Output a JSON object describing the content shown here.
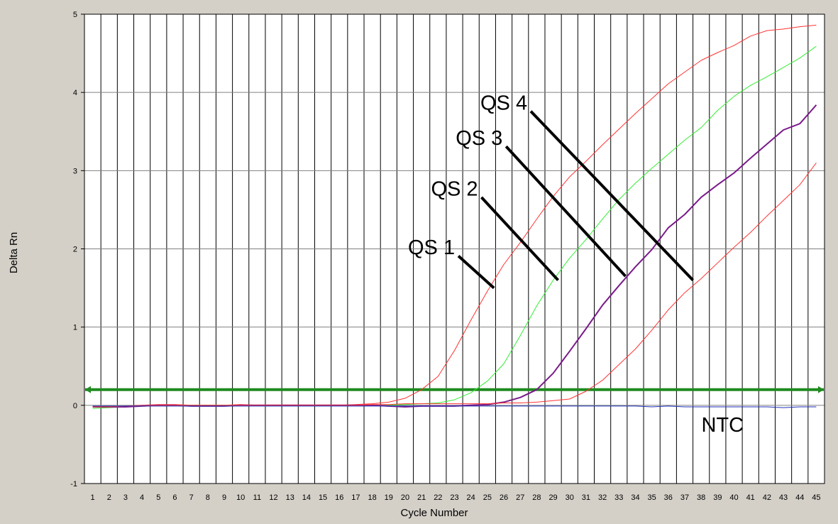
{
  "chart_data": {
    "type": "line",
    "title": "",
    "xlabel": "Cycle Number",
    "ylabel": "Delta Rn",
    "xlim": [
      0.5,
      45.5
    ],
    "ylim": [
      -1,
      5
    ],
    "x_ticks": [
      1,
      2,
      3,
      4,
      5,
      6,
      7,
      8,
      9,
      10,
      11,
      12,
      13,
      14,
      15,
      16,
      17,
      18,
      19,
      20,
      21,
      22,
      23,
      24,
      25,
      26,
      27,
      28,
      29,
      30,
      31,
      32,
      33,
      34,
      35,
      36,
      37,
      38,
      39,
      40,
      41,
      42,
      43,
      44,
      45
    ],
    "y_ticks": [
      -1,
      0,
      1,
      2,
      3,
      4,
      5
    ],
    "grid": true,
    "threshold": {
      "value": 0.2,
      "color": "#1f8a1f"
    },
    "x": [
      1,
      2,
      3,
      4,
      5,
      6,
      7,
      8,
      9,
      10,
      11,
      12,
      13,
      14,
      15,
      16,
      17,
      18,
      19,
      20,
      21,
      22,
      23,
      24,
      25,
      26,
      27,
      28,
      29,
      30,
      31,
      32,
      33,
      34,
      35,
      36,
      37,
      38,
      39,
      40,
      41,
      42,
      43,
      44,
      45
    ],
    "series": [
      {
        "color": "#ff3333",
        "width": 1,
        "values": [
          -0.02,
          -0.02,
          -0.01,
          0,
          0.01,
          0.01,
          0,
          0,
          0,
          0.01,
          0,
          0,
          0,
          0,
          0,
          0,
          0.01,
          0.02,
          0.04,
          0.09,
          0.2,
          0.37,
          0.7,
          1.09,
          1.46,
          1.8,
          2.08,
          2.38,
          2.67,
          2.92,
          3.12,
          3.33,
          3.53,
          3.73,
          3.92,
          4.11,
          4.26,
          4.41,
          4.51,
          4.6,
          4.72,
          4.79,
          4.81,
          4.84,
          4.86
        ]
      },
      {
        "color": "#33ee33",
        "width": 1,
        "values": [
          -0.04,
          -0.03,
          -0.02,
          -0.01,
          0,
          0,
          0,
          0,
          0,
          0,
          0,
          0,
          0,
          0,
          0,
          0,
          0,
          0,
          0,
          0.01,
          0.02,
          0.03,
          0.07,
          0.16,
          0.31,
          0.53,
          0.89,
          1.27,
          1.6,
          1.88,
          2.12,
          2.38,
          2.63,
          2.84,
          3.03,
          3.21,
          3.39,
          3.55,
          3.77,
          3.95,
          4.09,
          4.2,
          4.32,
          4.44,
          4.59
        ]
      },
      {
        "color": "#7a1a8a",
        "width": 2,
        "values": [
          -0.02,
          -0.02,
          -0.02,
          -0.01,
          0,
          0,
          -0.01,
          -0.01,
          -0.01,
          0,
          0,
          0,
          0,
          0,
          0,
          0,
          0,
          0,
          -0.01,
          -0.02,
          -0.01,
          -0.01,
          -0.01,
          0,
          0.01,
          0.04,
          0.1,
          0.2,
          0.41,
          0.69,
          0.98,
          1.28,
          1.53,
          1.77,
          1.99,
          2.27,
          2.44,
          2.66,
          2.82,
          2.97,
          3.16,
          3.34,
          3.52,
          3.6,
          3.84
        ]
      },
      {
        "color": "#ff3333",
        "width": 1,
        "values": [
          -0.02,
          -0.02,
          -0.01,
          -0.01,
          0,
          0,
          0,
          0,
          0,
          0,
          0,
          0,
          0,
          0,
          0,
          0,
          0,
          0.01,
          0.01,
          0.02,
          0.02,
          0.02,
          0.02,
          0.02,
          0.02,
          0.03,
          0.03,
          0.04,
          0.06,
          0.08,
          0.18,
          0.32,
          0.52,
          0.72,
          0.96,
          1.22,
          1.44,
          1.62,
          1.82,
          2.02,
          2.21,
          2.42,
          2.62,
          2.82,
          3.1
        ]
      },
      {
        "color": "#2233bb",
        "width": 1,
        "values": [
          -0.01,
          -0.01,
          -0.01,
          -0.01,
          -0.01,
          -0.01,
          -0.01,
          -0.01,
          -0.01,
          -0.01,
          -0.01,
          -0.01,
          -0.01,
          -0.01,
          -0.01,
          -0.01,
          -0.01,
          -0.01,
          -0.01,
          -0.01,
          -0.01,
          -0.01,
          -0.01,
          -0.01,
          -0.01,
          -0.01,
          -0.01,
          -0.01,
          -0.01,
          -0.01,
          -0.01,
          -0.01,
          -0.01,
          -0.01,
          -0.02,
          -0.01,
          -0.02,
          -0.02,
          -0.02,
          -0.02,
          -0.02,
          -0.02,
          -0.03,
          -0.02,
          -0.02
        ]
      }
    ],
    "annotations": [
      {
        "text": "QS 1",
        "x": 21.6,
        "y": 2.0,
        "x2": 25.4,
        "y2": 1.5
      },
      {
        "text": "QS 2",
        "x": 23.0,
        "y": 2.75,
        "x2": 29.3,
        "y2": 1.6
      },
      {
        "text": "QS 3",
        "x": 24.5,
        "y": 3.4,
        "x2": 33.4,
        "y2": 1.65
      },
      {
        "text": "QS 4",
        "x": 26.0,
        "y": 3.85,
        "x2": 37.5,
        "y2": 1.6
      },
      {
        "text": "NTC",
        "x": 39.3,
        "y": -0.27
      }
    ]
  }
}
